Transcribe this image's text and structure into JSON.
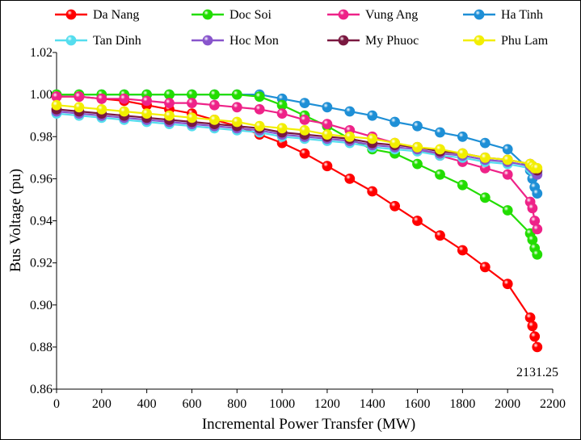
{
  "chart_data": {
    "type": "line",
    "title": "",
    "xlabel": "Incremental  Power Transfer (MW)",
    "ylabel": "Bus Voltage (pu)",
    "xlim": [
      0,
      2200
    ],
    "ylim": [
      0.86,
      1.02
    ],
    "x_ticks": [
      "0",
      "200",
      "400",
      "600",
      "800",
      "1000",
      "1200",
      "1400",
      "1600",
      "1800",
      "2000",
      "2200"
    ],
    "y_ticks": [
      "0.86",
      "0.88",
      "0.90",
      "0.92",
      "0.94",
      "0.96",
      "0.98",
      "1.00",
      "1.02"
    ],
    "grid": false,
    "legend_position": "top",
    "annotation": {
      "text": "2131.25",
      "x": 2131.25,
      "y": 0.88
    },
    "series": [
      {
        "name": "Da Nang",
        "color": "#ff0000",
        "x": [
          0,
          100,
          200,
          300,
          400,
          500,
          600,
          700,
          800,
          900,
          1000,
          1100,
          1200,
          1300,
          1400,
          1500,
          1600,
          1700,
          1800,
          1900,
          2000,
          2100,
          2110,
          2120,
          2131.25
        ],
        "y": [
          0.999,
          0.999,
          0.998,
          0.997,
          0.995,
          0.993,
          0.991,
          0.988,
          0.985,
          0.981,
          0.977,
          0.972,
          0.966,
          0.96,
          0.954,
          0.947,
          0.94,
          0.933,
          0.926,
          0.918,
          0.91,
          0.894,
          0.89,
          0.885,
          0.88
        ]
      },
      {
        "name": "Doc Soi",
        "color": "#22dd00",
        "x": [
          0,
          100,
          200,
          300,
          400,
          500,
          600,
          700,
          800,
          900,
          1000,
          1100,
          1200,
          1300,
          1400,
          1500,
          1600,
          1700,
          1800,
          1900,
          2000,
          2100,
          2110,
          2120,
          2131.25
        ],
        "y": [
          1.0,
          1.0,
          1.0,
          1.0,
          1.0,
          1.0,
          1.0,
          1.0,
          1.0,
          0.999,
          0.995,
          0.99,
          0.985,
          0.979,
          0.974,
          0.972,
          0.967,
          0.962,
          0.957,
          0.951,
          0.945,
          0.934,
          0.931,
          0.927,
          0.924
        ]
      },
      {
        "name": "Vung Ang",
        "color": "#ee2288",
        "x": [
          0,
          100,
          200,
          300,
          400,
          500,
          600,
          700,
          800,
          900,
          1000,
          1100,
          1200,
          1300,
          1400,
          1500,
          1600,
          1700,
          1800,
          1900,
          2000,
          2100,
          2110,
          2120,
          2131.25
        ],
        "y": [
          0.999,
          0.999,
          0.998,
          0.998,
          0.997,
          0.996,
          0.996,
          0.995,
          0.994,
          0.993,
          0.991,
          0.988,
          0.986,
          0.983,
          0.98,
          0.977,
          0.974,
          0.971,
          0.968,
          0.965,
          0.962,
          0.949,
          0.946,
          0.94,
          0.936
        ]
      },
      {
        "name": "Ha Tinh",
        "color": "#1e8fd6",
        "x": [
          0,
          100,
          200,
          300,
          400,
          500,
          600,
          700,
          800,
          900,
          1000,
          1100,
          1200,
          1300,
          1400,
          1500,
          1600,
          1700,
          1800,
          1900,
          2000,
          2100,
          2110,
          2120,
          2131.25
        ],
        "y": [
          1.0,
          1.0,
          1.0,
          1.0,
          1.0,
          1.0,
          1.0,
          1.0,
          1.0,
          1.0,
          0.998,
          0.996,
          0.994,
          0.992,
          0.99,
          0.987,
          0.985,
          0.982,
          0.98,
          0.977,
          0.974,
          0.964,
          0.96,
          0.956,
          0.953
        ]
      },
      {
        "name": "Tan Dinh",
        "color": "#55ddee",
        "x": [
          0,
          100,
          200,
          300,
          400,
          500,
          600,
          700,
          800,
          900,
          1000,
          1100,
          1200,
          1300,
          1400,
          1500,
          1600,
          1700,
          1800,
          1900,
          2000,
          2100,
          2110,
          2120,
          2131.25
        ],
        "y": [
          0.991,
          0.99,
          0.989,
          0.988,
          0.987,
          0.986,
          0.985,
          0.984,
          0.983,
          0.982,
          0.98,
          0.979,
          0.978,
          0.977,
          0.975,
          0.974,
          0.973,
          0.971,
          0.97,
          0.968,
          0.967,
          0.965,
          0.964,
          0.964,
          0.963
        ]
      },
      {
        "name": "Hoc Mon",
        "color": "#8855cc",
        "x": [
          0,
          100,
          200,
          300,
          400,
          500,
          600,
          700,
          800,
          900,
          1000,
          1100,
          1200,
          1300,
          1400,
          1500,
          1600,
          1700,
          1800,
          1900,
          2000,
          2100,
          2110,
          2120,
          2131.25
        ],
        "y": [
          0.992,
          0.991,
          0.99,
          0.989,
          0.988,
          0.987,
          0.986,
          0.985,
          0.984,
          0.983,
          0.981,
          0.98,
          0.979,
          0.978,
          0.976,
          0.975,
          0.974,
          0.972,
          0.971,
          0.969,
          0.968,
          0.966,
          0.965,
          0.964,
          0.962
        ]
      },
      {
        "name": "My Phuoc",
        "color": "#7a1840",
        "x": [
          0,
          100,
          200,
          300,
          400,
          500,
          600,
          700,
          800,
          900,
          1000,
          1100,
          1200,
          1300,
          1400,
          1500,
          1600,
          1700,
          1800,
          1900,
          2000,
          2100,
          2110,
          2120,
          2131.25
        ],
        "y": [
          0.993,
          0.992,
          0.991,
          0.99,
          0.989,
          0.988,
          0.987,
          0.986,
          0.985,
          0.984,
          0.982,
          0.981,
          0.98,
          0.979,
          0.977,
          0.976,
          0.975,
          0.973,
          0.972,
          0.97,
          0.969,
          0.967,
          0.966,
          0.965,
          0.964
        ]
      },
      {
        "name": "Phu Lam",
        "color": "#f2ee00",
        "x": [
          0,
          100,
          200,
          300,
          400,
          500,
          600,
          700,
          800,
          900,
          1000,
          1100,
          1200,
          1300,
          1400,
          1500,
          1600,
          1700,
          1800,
          1900,
          2000,
          2100,
          2110,
          2120,
          2131.25
        ],
        "y": [
          0.995,
          0.994,
          0.993,
          0.992,
          0.991,
          0.99,
          0.989,
          0.988,
          0.987,
          0.985,
          0.984,
          0.983,
          0.981,
          0.98,
          0.979,
          0.977,
          0.975,
          0.974,
          0.972,
          0.97,
          0.969,
          0.967,
          0.966,
          0.965,
          0.965
        ]
      }
    ]
  }
}
